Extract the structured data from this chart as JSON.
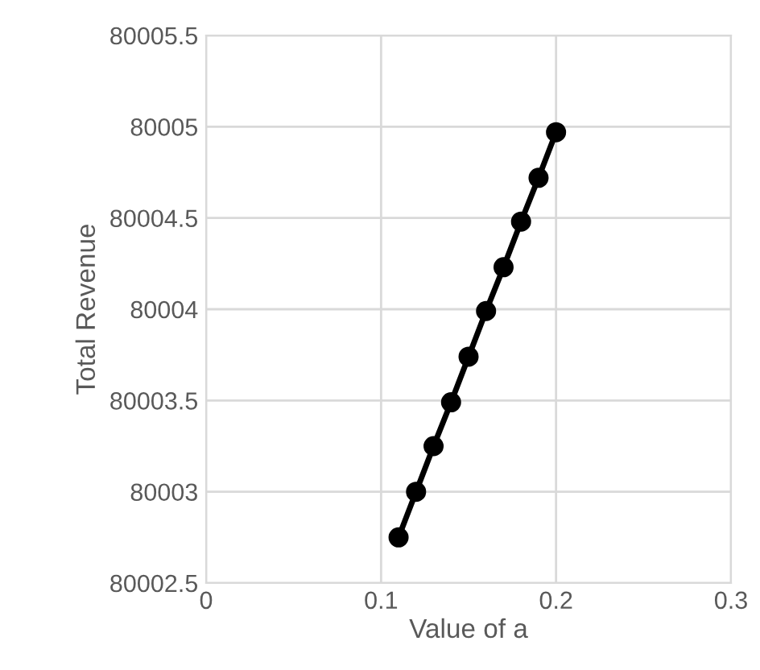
{
  "chart_data": {
    "type": "line",
    "xlabel": "Value of a",
    "ylabel": "Total Revenue",
    "x": [
      0.11,
      0.12,
      0.13,
      0.14,
      0.15,
      0.16,
      0.17,
      0.18,
      0.19,
      0.2
    ],
    "series": [
      {
        "color": "#000000",
        "values": [
          80002.75,
          80003.0,
          80003.25,
          80003.49,
          80003.74,
          80003.99,
          80004.23,
          80004.48,
          80004.72,
          80004.97
        ]
      }
    ],
    "xlim": [
      0,
      0.3
    ],
    "xticks": [
      0,
      0.1,
      0.2,
      0.3
    ],
    "ylim": [
      80002.5,
      80005.5
    ],
    "yticks": [
      80002.5,
      80003,
      80003.5,
      80004,
      80004.5,
      80005,
      80005.5
    ],
    "grid": true,
    "marker": "circle",
    "line_style": "solid"
  }
}
